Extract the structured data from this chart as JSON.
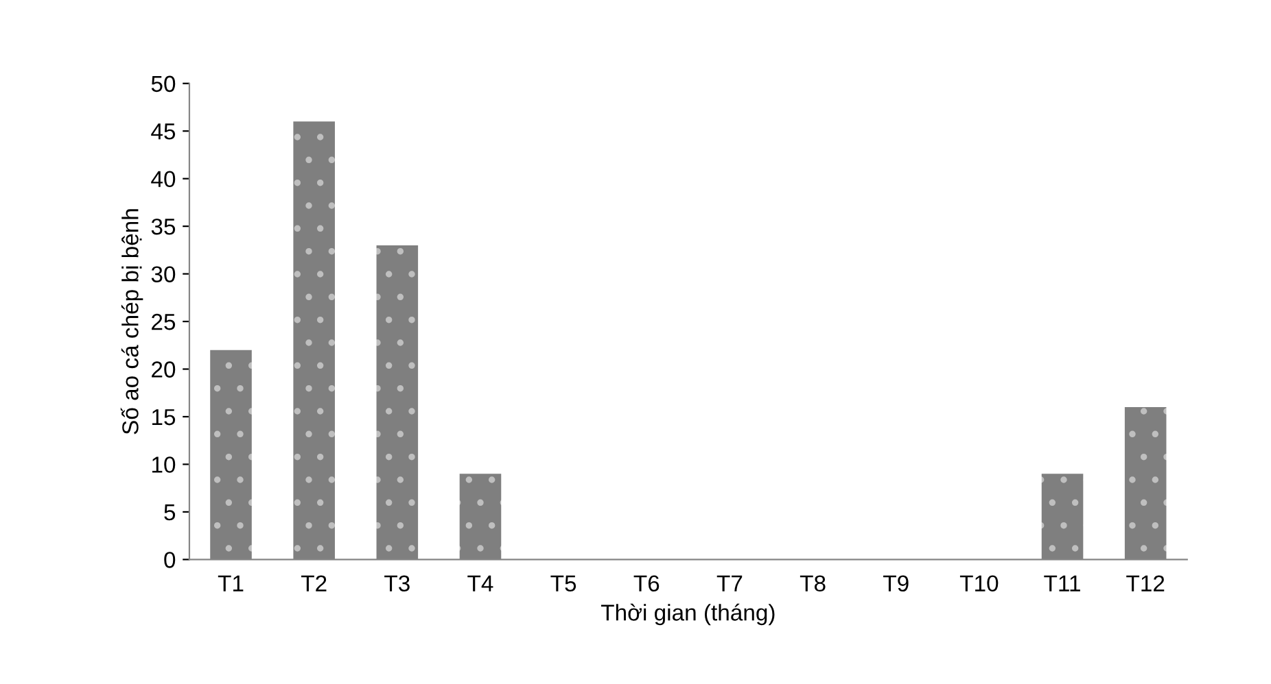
{
  "chart_data": {
    "type": "bar",
    "xlabel": "Thời gian (tháng)",
    "ylabel": "Số ao cá chép bị bệnh",
    "categories": [
      "T1",
      "T2",
      "T3",
      "T4",
      "T5",
      "T6",
      "T7",
      "T8",
      "T9",
      "T10",
      "T11",
      "T12"
    ],
    "values": [
      22,
      46,
      33,
      9,
      0,
      0,
      0,
      0,
      0,
      0,
      9,
      16
    ],
    "color": "#7f7f7f",
    "ylim": [
      0,
      50
    ],
    "yticks": [
      0,
      5,
      10,
      15,
      20,
      25,
      30,
      35,
      40,
      45,
      50
    ],
    "grid": false,
    "legend": false
  }
}
